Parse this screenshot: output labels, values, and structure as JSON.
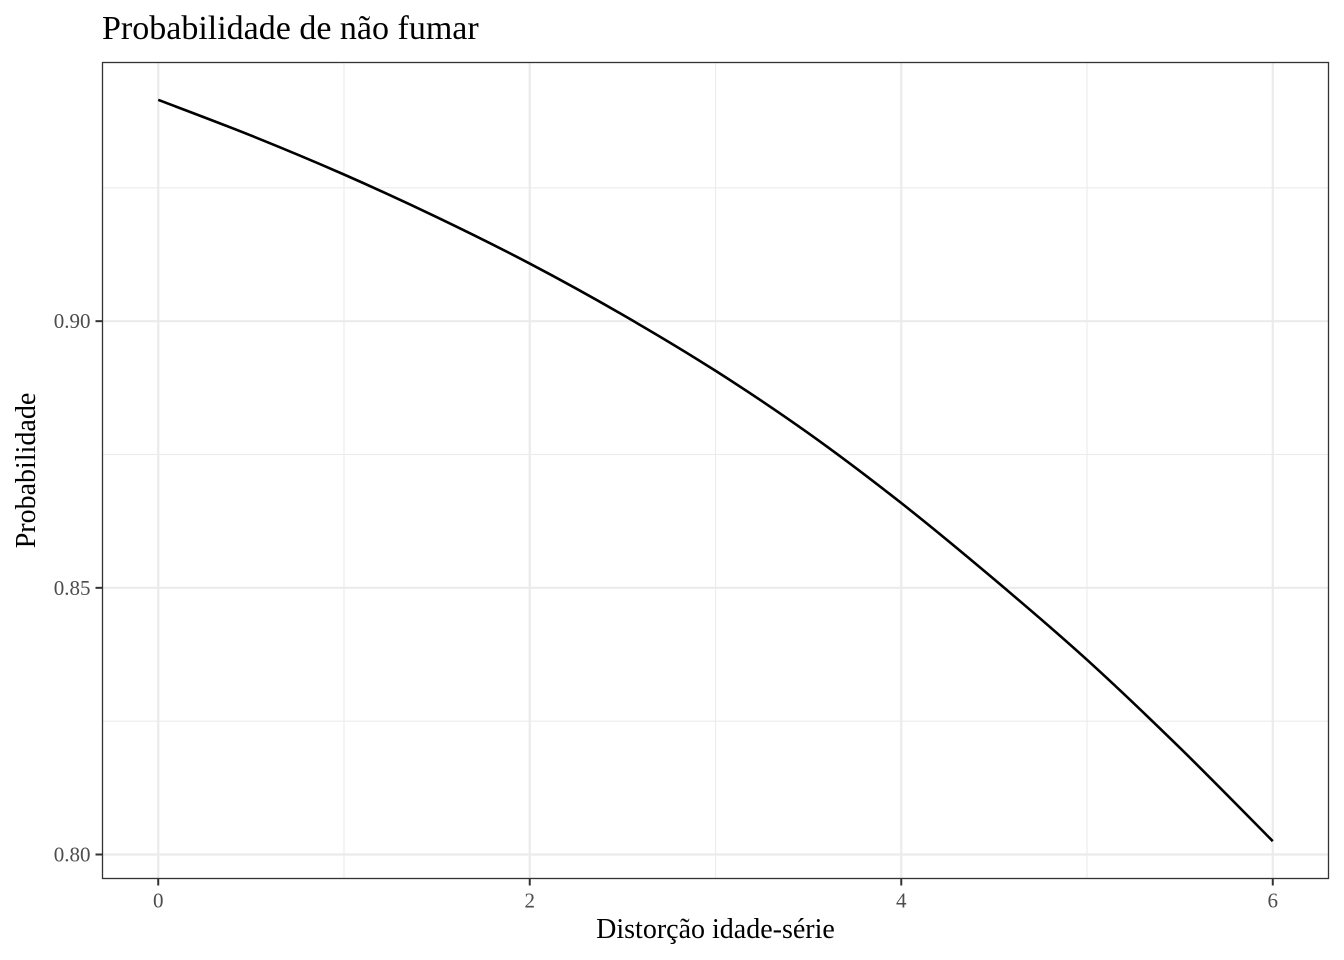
{
  "chart_data": {
    "type": "line",
    "title": "Probabilidade de não fumar",
    "xlabel": "Distorção idade-série",
    "ylabel": "Probabilidade",
    "xlim": [
      -0.3,
      6.3
    ],
    "ylim": [
      0.7955,
      0.9485
    ],
    "x_ticks": [
      0,
      2,
      4,
      6
    ],
    "x_tick_labels": [
      "0",
      "2",
      "4",
      "6"
    ],
    "x_minor_ticks": [
      1,
      3,
      5
    ],
    "y_ticks": [
      0.8,
      0.85,
      0.9
    ],
    "y_tick_labels": [
      "0.80",
      "0.85",
      "0.90"
    ],
    "y_minor_ticks": [
      0.825,
      0.875,
      0.925
    ],
    "grid": true,
    "legend": "none",
    "series": [
      {
        "color": "#000000",
        "x": [
          0,
          0.5,
          1,
          1.5,
          2,
          2.5,
          3,
          3.5,
          4,
          4.5,
          5,
          5.5,
          6
        ],
        "values": [
          0.9415,
          0.9348,
          0.9275,
          0.9195,
          0.9108,
          0.9012,
          0.8907,
          0.879,
          0.8659,
          0.8516,
          0.8365,
          0.82,
          0.8025
        ]
      }
    ]
  }
}
